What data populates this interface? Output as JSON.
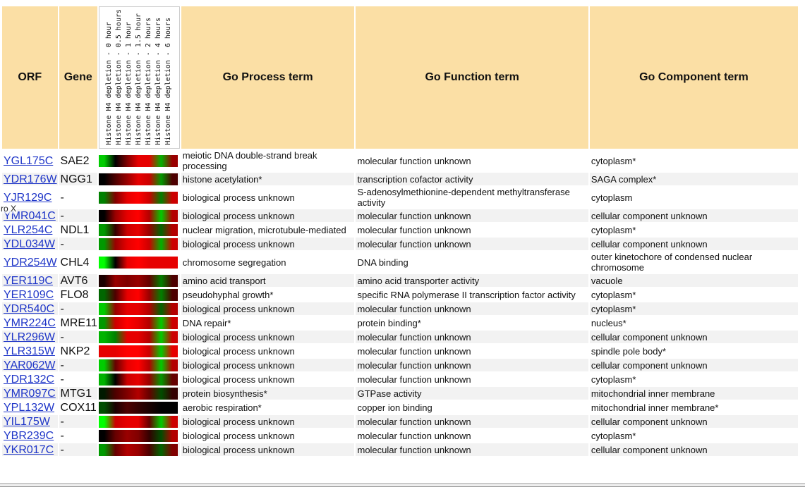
{
  "headers": {
    "orf": "ORF",
    "gene": "Gene",
    "process": "Go Process term",
    "function": "Go Function term",
    "component": "Go Component term"
  },
  "conditions": [
    "Histone H4 depletion - 0 hour",
    "Histone H4 depletion - 0.5 hours",
    "Histone H4 depletion - 1 hour",
    "Histone H4 depletion - 1.5 hour",
    "Histone H4 depletion - 2 hours",
    "Histone H4 depletion - 4 hours",
    "Histone H4 depletion - 6 hours"
  ],
  "overlay_text": "ro X",
  "rows": [
    {
      "orf": "YGL175C",
      "gene": "SAE2",
      "process": "meiotic DNA double-strand break processing",
      "function": "molecular function unknown",
      "component": "cytoplasm*",
      "expr": [
        0.8,
        0.0,
        -0.5,
        -0.9,
        -0.9,
        0.7,
        -0.6
      ]
    },
    {
      "orf": "YDR176W",
      "gene": "NGG1",
      "process": "histone acetylation*",
      "function": "transcription cofactor activity",
      "component": "SAGA complex*",
      "expr": [
        0.0,
        -0.3,
        -0.6,
        -0.9,
        -0.8,
        0.6,
        -0.3
      ]
    },
    {
      "orf": "YJR129C",
      "gene": "-",
      "process": "biological process unknown",
      "function": "S-adenosylmethionine-dependent methyltransferase activity",
      "component": "cytoplasm",
      "expr": [
        0.5,
        -0.5,
        -0.9,
        -1.0,
        -0.8,
        0.5,
        -0.8
      ]
    },
    {
      "orf": "YMR041C",
      "gene": "-",
      "process": "biological process unknown",
      "function": "molecular function unknown",
      "component": "cellular component unknown",
      "expr": [
        0.0,
        -0.6,
        -0.9,
        -1.0,
        -0.7,
        0.8,
        -0.7
      ]
    },
    {
      "orf": "YLR254C",
      "gene": "NDL1",
      "process": "nuclear migration, microtubule-mediated",
      "function": "molecular function unknown",
      "component": "cytoplasm*",
      "expr": [
        0.6,
        -0.2,
        -0.8,
        -0.9,
        -0.6,
        0.4,
        -0.7
      ]
    },
    {
      "orf": "YDL034W",
      "gene": "-",
      "process": "biological process unknown",
      "function": "molecular function unknown",
      "component": "cellular component unknown",
      "expr": [
        0.6,
        -0.6,
        -0.9,
        -1.0,
        -0.8,
        0.7,
        -0.8
      ]
    },
    {
      "orf": "YDR254W",
      "gene": "CHL4",
      "process": "chromosome segregation",
      "function": "DNA binding",
      "component": "outer kinetochore of condensed nuclear chromosome",
      "expr": [
        1.0,
        0.0,
        -0.9,
        -1.0,
        -0.9,
        -0.9,
        -0.9
      ]
    },
    {
      "orf": "YER119C",
      "gene": "AVT6",
      "process": "amino acid transport",
      "function": "amino acid transporter activity",
      "component": "vacuole",
      "expr": [
        -0.1,
        -0.6,
        -0.5,
        -0.6,
        -0.4,
        0.5,
        -0.3
      ]
    },
    {
      "orf": "YER109C",
      "gene": "FLO8",
      "process": "pseudohyphal growth*",
      "function": "specific RNA polymerase II transcription factor activity",
      "component": "cytoplasm*",
      "expr": [
        0.4,
        -0.3,
        -0.9,
        -1.0,
        -0.6,
        0.5,
        -0.3
      ]
    },
    {
      "orf": "YDR540C",
      "gene": "-",
      "process": "biological process unknown",
      "function": "molecular function unknown",
      "component": "cytoplasm*",
      "expr": [
        0.8,
        -0.6,
        -0.9,
        -0.9,
        -0.7,
        0.4,
        -0.7
      ]
    },
    {
      "orf": "YMR224C",
      "gene": "MRE11",
      "process": "DNA repair*",
      "function": "protein binding*",
      "component": "nucleus*",
      "expr": [
        0.6,
        -0.8,
        -1.0,
        -0.9,
        -0.7,
        0.8,
        -0.8
      ]
    },
    {
      "orf": "YLR296W",
      "gene": "-",
      "process": "biological process unknown",
      "function": "molecular function unknown",
      "component": "cellular component unknown",
      "expr": [
        0.7,
        0.5,
        -0.9,
        -0.9,
        -0.7,
        0.8,
        -0.8
      ]
    },
    {
      "orf": "YLR315W",
      "gene": "NKP2",
      "process": "biological process unknown",
      "function": "molecular function unknown",
      "component": "spindle pole body*",
      "expr": [
        -0.9,
        -0.9,
        -1.0,
        -1.0,
        -0.8,
        0.8,
        -0.9
      ]
    },
    {
      "orf": "YAR062W",
      "gene": "-",
      "process": "biological process unknown",
      "function": "molecular function unknown",
      "component": "cellular component unknown",
      "expr": [
        0.8,
        -0.4,
        -0.9,
        -1.0,
        -0.7,
        0.8,
        -0.7
      ]
    },
    {
      "orf": "YDR132C",
      "gene": "-",
      "process": "biological process unknown",
      "function": "molecular function unknown",
      "component": "cytoplasm*",
      "expr": [
        0.7,
        0.0,
        -0.8,
        -0.9,
        -0.6,
        0.6,
        -0.4
      ]
    },
    {
      "orf": "YMR097C",
      "gene": "MTG1",
      "process": "protein biosynthesis*",
      "function": "GTPase activity",
      "component": "mitochondrial inner membrane",
      "expr": [
        0.1,
        -0.3,
        -0.5,
        -0.7,
        -0.4,
        0.3,
        -0.2
      ]
    },
    {
      "orf": "YPL132W",
      "gene": "COX11",
      "process": "aerobic respiration*",
      "function": "copper ion binding",
      "component": "mitochondrial inner membrane*",
      "expr": [
        0.3,
        -0.1,
        -0.3,
        -0.2,
        -0.1,
        0.0,
        0.0
      ]
    },
    {
      "orf": "YIL175W",
      "gene": "-",
      "process": "biological process unknown",
      "function": "molecular function unknown",
      "component": "cellular component unknown",
      "expr": [
        1.0,
        -0.8,
        -0.9,
        -0.9,
        -0.4,
        0.8,
        -0.8
      ]
    },
    {
      "orf": "YBR239C",
      "gene": "-",
      "process": "biological process unknown",
      "function": "molecular function unknown",
      "component": "cytoplasm*",
      "expr": [
        0.0,
        -0.4,
        -0.6,
        -0.5,
        -0.2,
        0.3,
        -0.7
      ]
    },
    {
      "orf": "YKR017C",
      "gene": "-",
      "process": "biological process unknown",
      "function": "molecular function unknown",
      "component": "cellular component unknown",
      "expr": [
        0.6,
        -0.4,
        -0.7,
        -0.6,
        -0.3,
        0.4,
        -0.5
      ]
    }
  ]
}
